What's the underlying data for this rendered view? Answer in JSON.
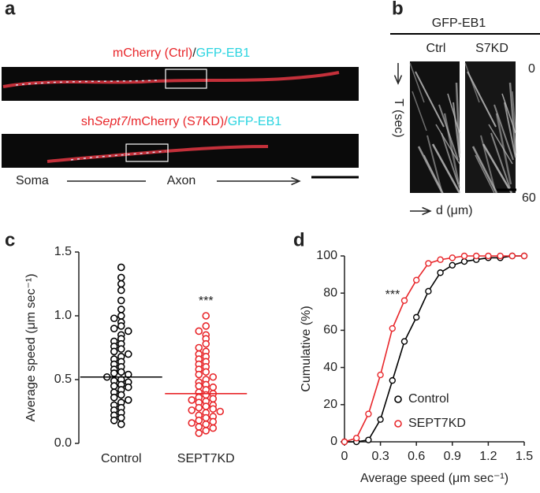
{
  "figure": {
    "panel_labels": [
      "a",
      "b",
      "c",
      "d"
    ],
    "a": {
      "title1": [
        "mCherry (Ctrl)",
        "/",
        "GFP-EB1"
      ],
      "title2": [
        "sh",
        "Sept7",
        "/mCherry (S7KD)/",
        "GFP-EB1"
      ],
      "soma": "Soma",
      "axon": "Axon"
    },
    "b": {
      "title": "GFP-EB1",
      "lanes": [
        "Ctrl",
        "S7KD"
      ],
      "t_labels": [
        0,
        60
      ],
      "t_axis": "T (sec)",
      "d_axis": "d (μm)"
    }
  },
  "chart_data": [
    {
      "type": "strip",
      "ylabel": "Average speed (μm sec⁻¹)",
      "annotation": "***",
      "categories": [
        "Control",
        "SEPT7KD"
      ],
      "ylim": [
        0,
        1.5
      ],
      "yticks": [
        {
          "value": 0,
          "label": "0.0"
        },
        0.5,
        {
          "value": 1,
          "label": "1.0"
        },
        1.5
      ],
      "series": [
        {
          "name": "Control",
          "color": "#000000",
          "mean": 0.52,
          "values": [
            1.38,
            1.3,
            1.25,
            1.2,
            1.12,
            1.05,
            1.0,
            0.98,
            0.95,
            0.92,
            0.9,
            0.88,
            0.85,
            0.82,
            0.8,
            0.78,
            0.76,
            0.74,
            0.72,
            0.7,
            0.68,
            0.66,
            0.64,
            0.62,
            0.6,
            0.58,
            0.56,
            0.55,
            0.54,
            0.52,
            0.5,
            0.49,
            0.48,
            0.46,
            0.45,
            0.44,
            0.42,
            0.4,
            0.38,
            0.36,
            0.34,
            0.32,
            0.3,
            0.28,
            0.26,
            0.24,
            0.22,
            0.2,
            0.18,
            0.15
          ]
        },
        {
          "name": "SEPT7KD",
          "color": "#e8262a",
          "mean": 0.39,
          "values": [
            1.0,
            0.92,
            0.88,
            0.85,
            0.82,
            0.78,
            0.75,
            0.72,
            0.7,
            0.68,
            0.66,
            0.64,
            0.62,
            0.6,
            0.58,
            0.56,
            0.54,
            0.52,
            0.5,
            0.48,
            0.46,
            0.45,
            0.44,
            0.42,
            0.4,
            0.39,
            0.38,
            0.36,
            0.35,
            0.34,
            0.33,
            0.32,
            0.3,
            0.29,
            0.28,
            0.27,
            0.26,
            0.25,
            0.24,
            0.22,
            0.21,
            0.2,
            0.18,
            0.17,
            0.16,
            0.15,
            0.13,
            0.12,
            0.1,
            0.08
          ]
        }
      ]
    },
    {
      "type": "line",
      "xlabel": "Average speed (μm sec⁻¹)",
      "ylabel": "Cumulative (%)",
      "annotation": "***",
      "x": [
        0,
        0.1,
        0.2,
        0.3,
        0.4,
        0.5,
        0.6,
        0.7,
        0.8,
        0.9,
        1.0,
        1.1,
        1.2,
        1.3,
        1.4,
        1.5
      ],
      "xlim": [
        0,
        1.5
      ],
      "xticks": [
        0,
        0.3,
        0.6,
        0.9,
        1.2,
        1.5
      ],
      "ylim": [
        0,
        100
      ],
      "yticks": [
        0,
        20,
        40,
        60,
        80,
        100
      ],
      "legend": "lower right",
      "series": [
        {
          "name": "Control",
          "color": "#000000",
          "values": [
            0,
            0,
            1,
            12,
            33,
            54,
            67,
            81,
            91,
            95,
            97,
            98,
            99,
            99,
            100,
            100
          ]
        },
        {
          "name": "SEPT7KD",
          "color": "#e8262a",
          "values": [
            0,
            2,
            15,
            36,
            61,
            76,
            87,
            96,
            98,
            99,
            100,
            100,
            100,
            100,
            100,
            100
          ]
        }
      ]
    }
  ]
}
